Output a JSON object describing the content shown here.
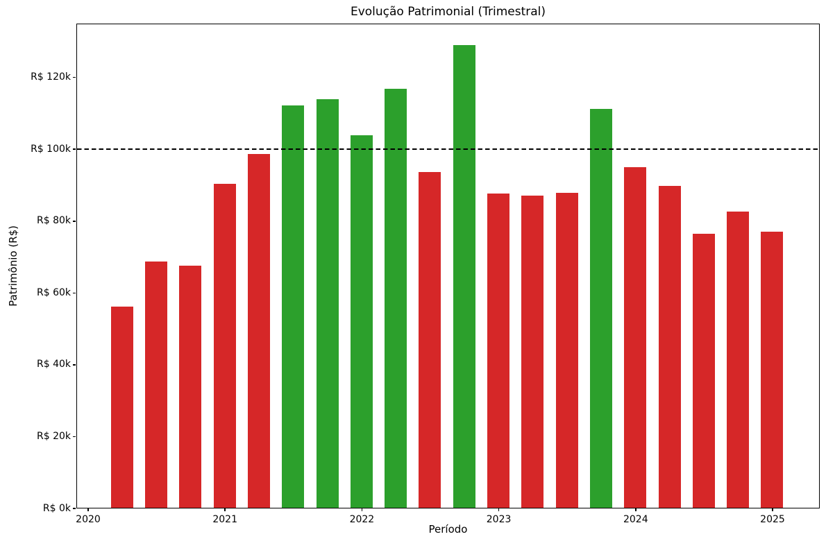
{
  "chart_data": {
    "type": "bar",
    "title": "Evolução Patrimonial (Trimestral)",
    "xlabel": "Período",
    "ylabel": "Patrimônio (R$)",
    "unit": "R$ thousands",
    "x": [
      "2020-Q2",
      "2020-Q3",
      "2020-Q4",
      "2021-Q1",
      "2021-Q2",
      "2021-Q3",
      "2021-Q4",
      "2022-Q1",
      "2022-Q2",
      "2022-Q3",
      "2022-Q4",
      "2023-Q1",
      "2023-Q2",
      "2023-Q3",
      "2023-Q4",
      "2024-Q1",
      "2024-Q2",
      "2024-Q3",
      "2024-Q4",
      "2025-Q1"
    ],
    "values": [
      56.0,
      68.6,
      67.4,
      90.2,
      98.5,
      112.1,
      113.8,
      103.8,
      116.7,
      93.5,
      128.8,
      87.5,
      87.0,
      87.7,
      111.0,
      94.9,
      89.7,
      76.3,
      82.5,
      76.9
    ],
    "bar_colors": [
      "red",
      "red",
      "red",
      "red",
      "red",
      "green",
      "green",
      "green",
      "green",
      "red",
      "green",
      "red",
      "red",
      "red",
      "green",
      "red",
      "red",
      "red",
      "red",
      "red"
    ],
    "colors": {
      "green": "#2ca02c",
      "red": "#d62728"
    },
    "threshold_line": {
      "value": 100,
      "style": "dashed",
      "color": "#000000"
    },
    "x_ticks": [
      2020,
      2021,
      2022,
      2023,
      2024,
      2025
    ],
    "x_tick_labels": [
      "2020",
      "2021",
      "2022",
      "2023",
      "2024",
      "2025"
    ],
    "y_ticks": [
      0,
      20,
      40,
      60,
      80,
      100,
      120
    ],
    "y_tick_labels": [
      "R$ 0k",
      "R$ 20k",
      "R$ 40k",
      "R$ 60k",
      "R$ 80k",
      "R$ 100k",
      "R$ 120k"
    ],
    "ylim": [
      0,
      135
    ],
    "grid": false,
    "legend": null
  }
}
